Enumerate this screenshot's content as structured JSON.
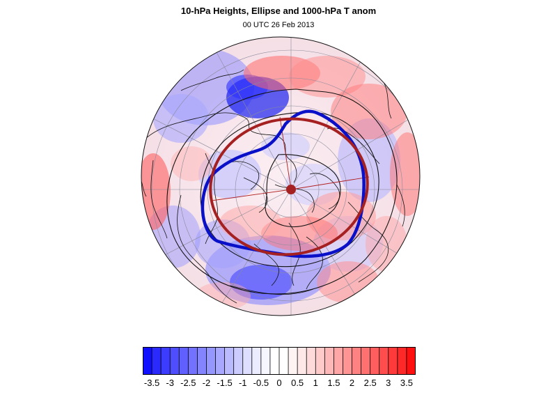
{
  "header": {
    "title": "10-hPa Heights, Ellipse and 1000-hPa T anom",
    "subtitle": "00 UTC 26 Feb 2013"
  },
  "map": {
    "projection": "north-polar-stereographic",
    "fields": [
      "1000-hPa temperature anomaly (shaded)",
      "10-hPa heights (black contours)",
      "vortex edge (blue)",
      "fitted ellipse (dark red)"
    ],
    "colors": {
      "vortex_edge": "#0a10c8",
      "ellipse": "#a52020",
      "contours": "#111111",
      "coast": "#111111",
      "grid": "#8a8a9a"
    }
  },
  "colorbar": {
    "min": -3.75,
    "max": 3.75,
    "step": 0.25,
    "labels": [
      "-3.5",
      "-3",
      "-2.5",
      "-2",
      "-1.5",
      "-1",
      "-0.5",
      "0",
      "0.5",
      "1",
      "1.5",
      "2",
      "2.5",
      "3",
      "3.5"
    ],
    "label_values": [
      -3.5,
      -3,
      -2.5,
      -2,
      -1.5,
      -1,
      -0.5,
      0,
      0.5,
      1,
      1.5,
      2,
      2.5,
      3,
      3.5
    ],
    "colors": [
      "#1010ff",
      "#2a2aff",
      "#3c3cff",
      "#4e4eff",
      "#6060ff",
      "#7272ff",
      "#8484ff",
      "#9696ff",
      "#a8a8ff",
      "#babaff",
      "#ccccff",
      "#dedeff",
      "#ececff",
      "#f6f6ff",
      "#ffffff",
      "#ffffff",
      "#fff4f4",
      "#ffe8e8",
      "#ffdada",
      "#ffcaca",
      "#ffb8b8",
      "#ffa6a6",
      "#ff9494",
      "#ff8282",
      "#ff7070",
      "#ff5e5e",
      "#ff4c4c",
      "#ff3a3a",
      "#ff2828",
      "#ff1010"
    ]
  }
}
